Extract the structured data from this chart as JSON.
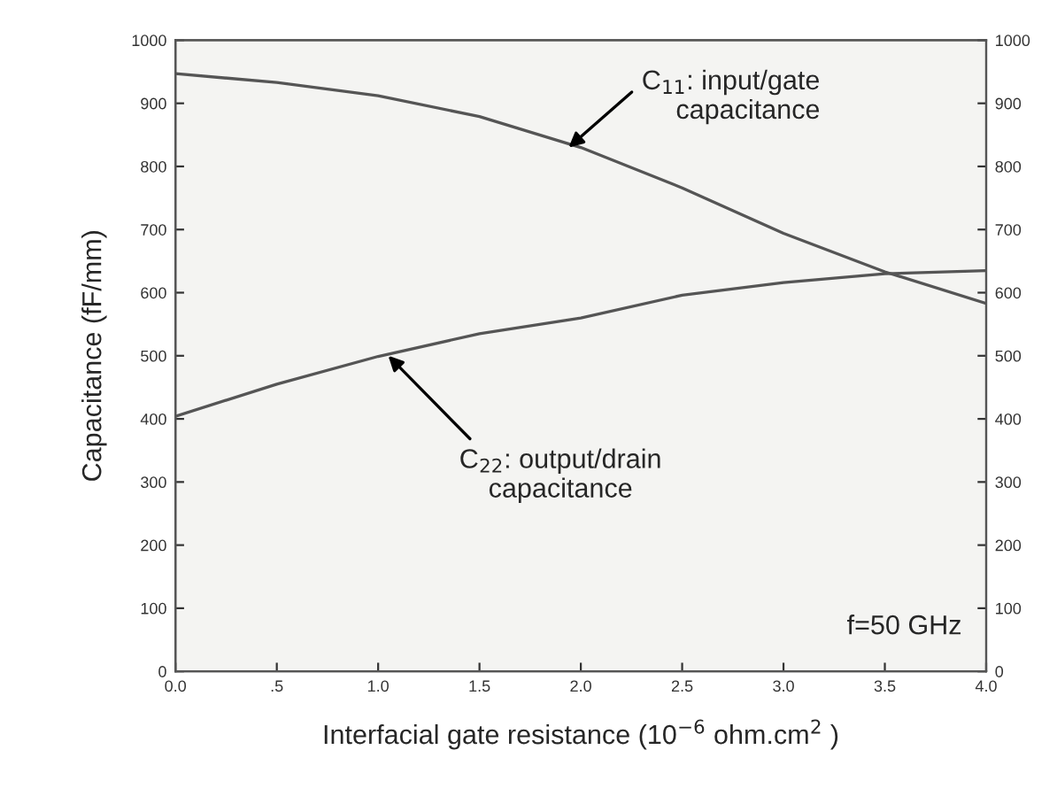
{
  "chart_data": {
    "type": "line",
    "xlabel": "Interfacial gate resistance (10$^{−6}$ ohm.cm$^{2}$ )",
    "ylabel": "Capacitance (fF/mm)",
    "x": [
      0.0,
      0.5,
      1.0,
      1.5,
      2.0,
      2.5,
      3.0,
      3.5,
      4.0
    ],
    "series": [
      {
        "color": "#555555",
        "values": [
          947,
          933,
          912,
          879,
          830,
          766,
          694,
          633,
          583
        ]
      },
      {
        "color": "#555555",
        "values": [
          404,
          455,
          499,
          535,
          560,
          596,
          616,
          630,
          635
        ]
      }
    ],
    "xlim": [
      0,
      4
    ],
    "xticks": [
      {
        "value": 0,
        "label": "0.0"
      },
      {
        "value": 0.5,
        "label": ".5"
      },
      {
        "value": 1,
        "label": "1.0"
      },
      {
        "value": 1.5,
        "label": "1.5"
      },
      {
        "value": 2,
        "label": "2.0"
      },
      {
        "value": 2.5,
        "label": "2.5"
      },
      {
        "value": 3,
        "label": "3.0"
      },
      {
        "value": 3.5,
        "label": "3.5"
      },
      {
        "value": 4,
        "label": "4.0"
      }
    ],
    "ylim": [
      0,
      1000
    ],
    "yticks": [
      0,
      100,
      200,
      300,
      400,
      500,
      600,
      700,
      800,
      900,
      1000
    ],
    "y2lim": [
      0,
      1000
    ],
    "y2ticks": [
      0,
      100,
      200,
      300,
      400,
      500,
      600,
      700,
      800,
      900,
      1000
    ],
    "annotations": [
      {
        "text": "C$_{11}$: input/gate\ncapacitance",
        "x": 1.94,
        "y": 830
      },
      {
        "text": "C$_{22}$: output/drain\ncapacitance",
        "x": 1.05,
        "y": 500
      },
      "f=50 GHz"
    ],
    "grid": false,
    "legend": false,
    "marker": "none",
    "line_style": "solid"
  }
}
